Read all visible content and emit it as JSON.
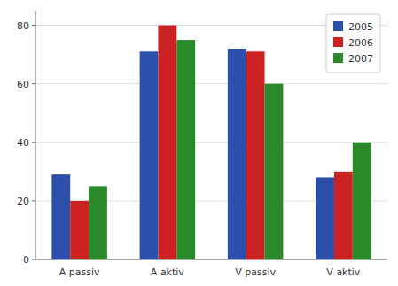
{
  "chart_data": {
    "type": "bar",
    "categories": [
      "A passiv",
      "A aktiv",
      "V passiv",
      "V aktiv"
    ],
    "series": [
      {
        "name": "2005",
        "color": "#2B4FAA",
        "values": [
          29,
          71,
          72,
          28
        ]
      },
      {
        "name": "2006",
        "color": "#CC2222",
        "values": [
          20,
          80,
          71,
          30
        ]
      },
      {
        "name": "2007",
        "color": "#2A8A2A",
        "values": [
          25,
          75,
          60,
          40
        ]
      }
    ],
    "ylim": [
      0,
      85
    ],
    "yticks": [
      0,
      20,
      40,
      60,
      80
    ],
    "grid": true,
    "legend": "upper right"
  }
}
